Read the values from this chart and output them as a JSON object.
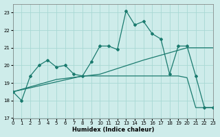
{
  "xlabel": "Humidex (Indice chaleur)",
  "background_color": "#ceecea",
  "grid_color": "#a8d8d4",
  "line_color": "#1a7a6e",
  "xlim": [
    0,
    23
  ],
  "ylim": [
    17,
    23.5
  ],
  "yticks": [
    17,
    18,
    19,
    20,
    21,
    22,
    23
  ],
  "xticks": [
    0,
    1,
    2,
    3,
    4,
    5,
    6,
    7,
    8,
    9,
    10,
    11,
    12,
    13,
    14,
    15,
    16,
    17,
    18,
    19,
    20,
    21,
    22,
    23
  ],
  "line1_x": [
    0,
    1,
    2,
    3,
    4,
    5,
    6,
    7,
    8,
    9,
    10,
    11,
    12,
    13,
    14,
    15,
    16,
    17,
    18,
    19,
    20,
    21,
    22,
    23
  ],
  "line1_y": [
    18.5,
    18.0,
    19.4,
    20.0,
    20.3,
    19.9,
    20.0,
    19.5,
    19.4,
    20.2,
    21.1,
    21.1,
    20.9,
    23.1,
    22.3,
    22.5,
    21.8,
    21.5,
    19.5,
    21.1,
    21.1,
    19.4,
    17.6,
    17.6
  ],
  "line2_x": [
    0,
    5,
    10,
    15,
    20,
    23
  ],
  "line2_y": [
    18.5,
    19.2,
    19.5,
    20.3,
    21.0,
    21.0
  ],
  "line3_x": [
    0,
    8,
    9,
    10,
    11,
    12,
    13,
    14,
    15,
    16,
    17,
    18,
    19,
    20,
    21,
    22,
    23
  ],
  "line3_y": [
    18.5,
    19.4,
    19.4,
    19.4,
    19.4,
    19.4,
    19.4,
    19.4,
    19.4,
    19.4,
    19.4,
    19.4,
    19.4,
    19.3,
    17.6,
    17.6,
    17.6
  ]
}
